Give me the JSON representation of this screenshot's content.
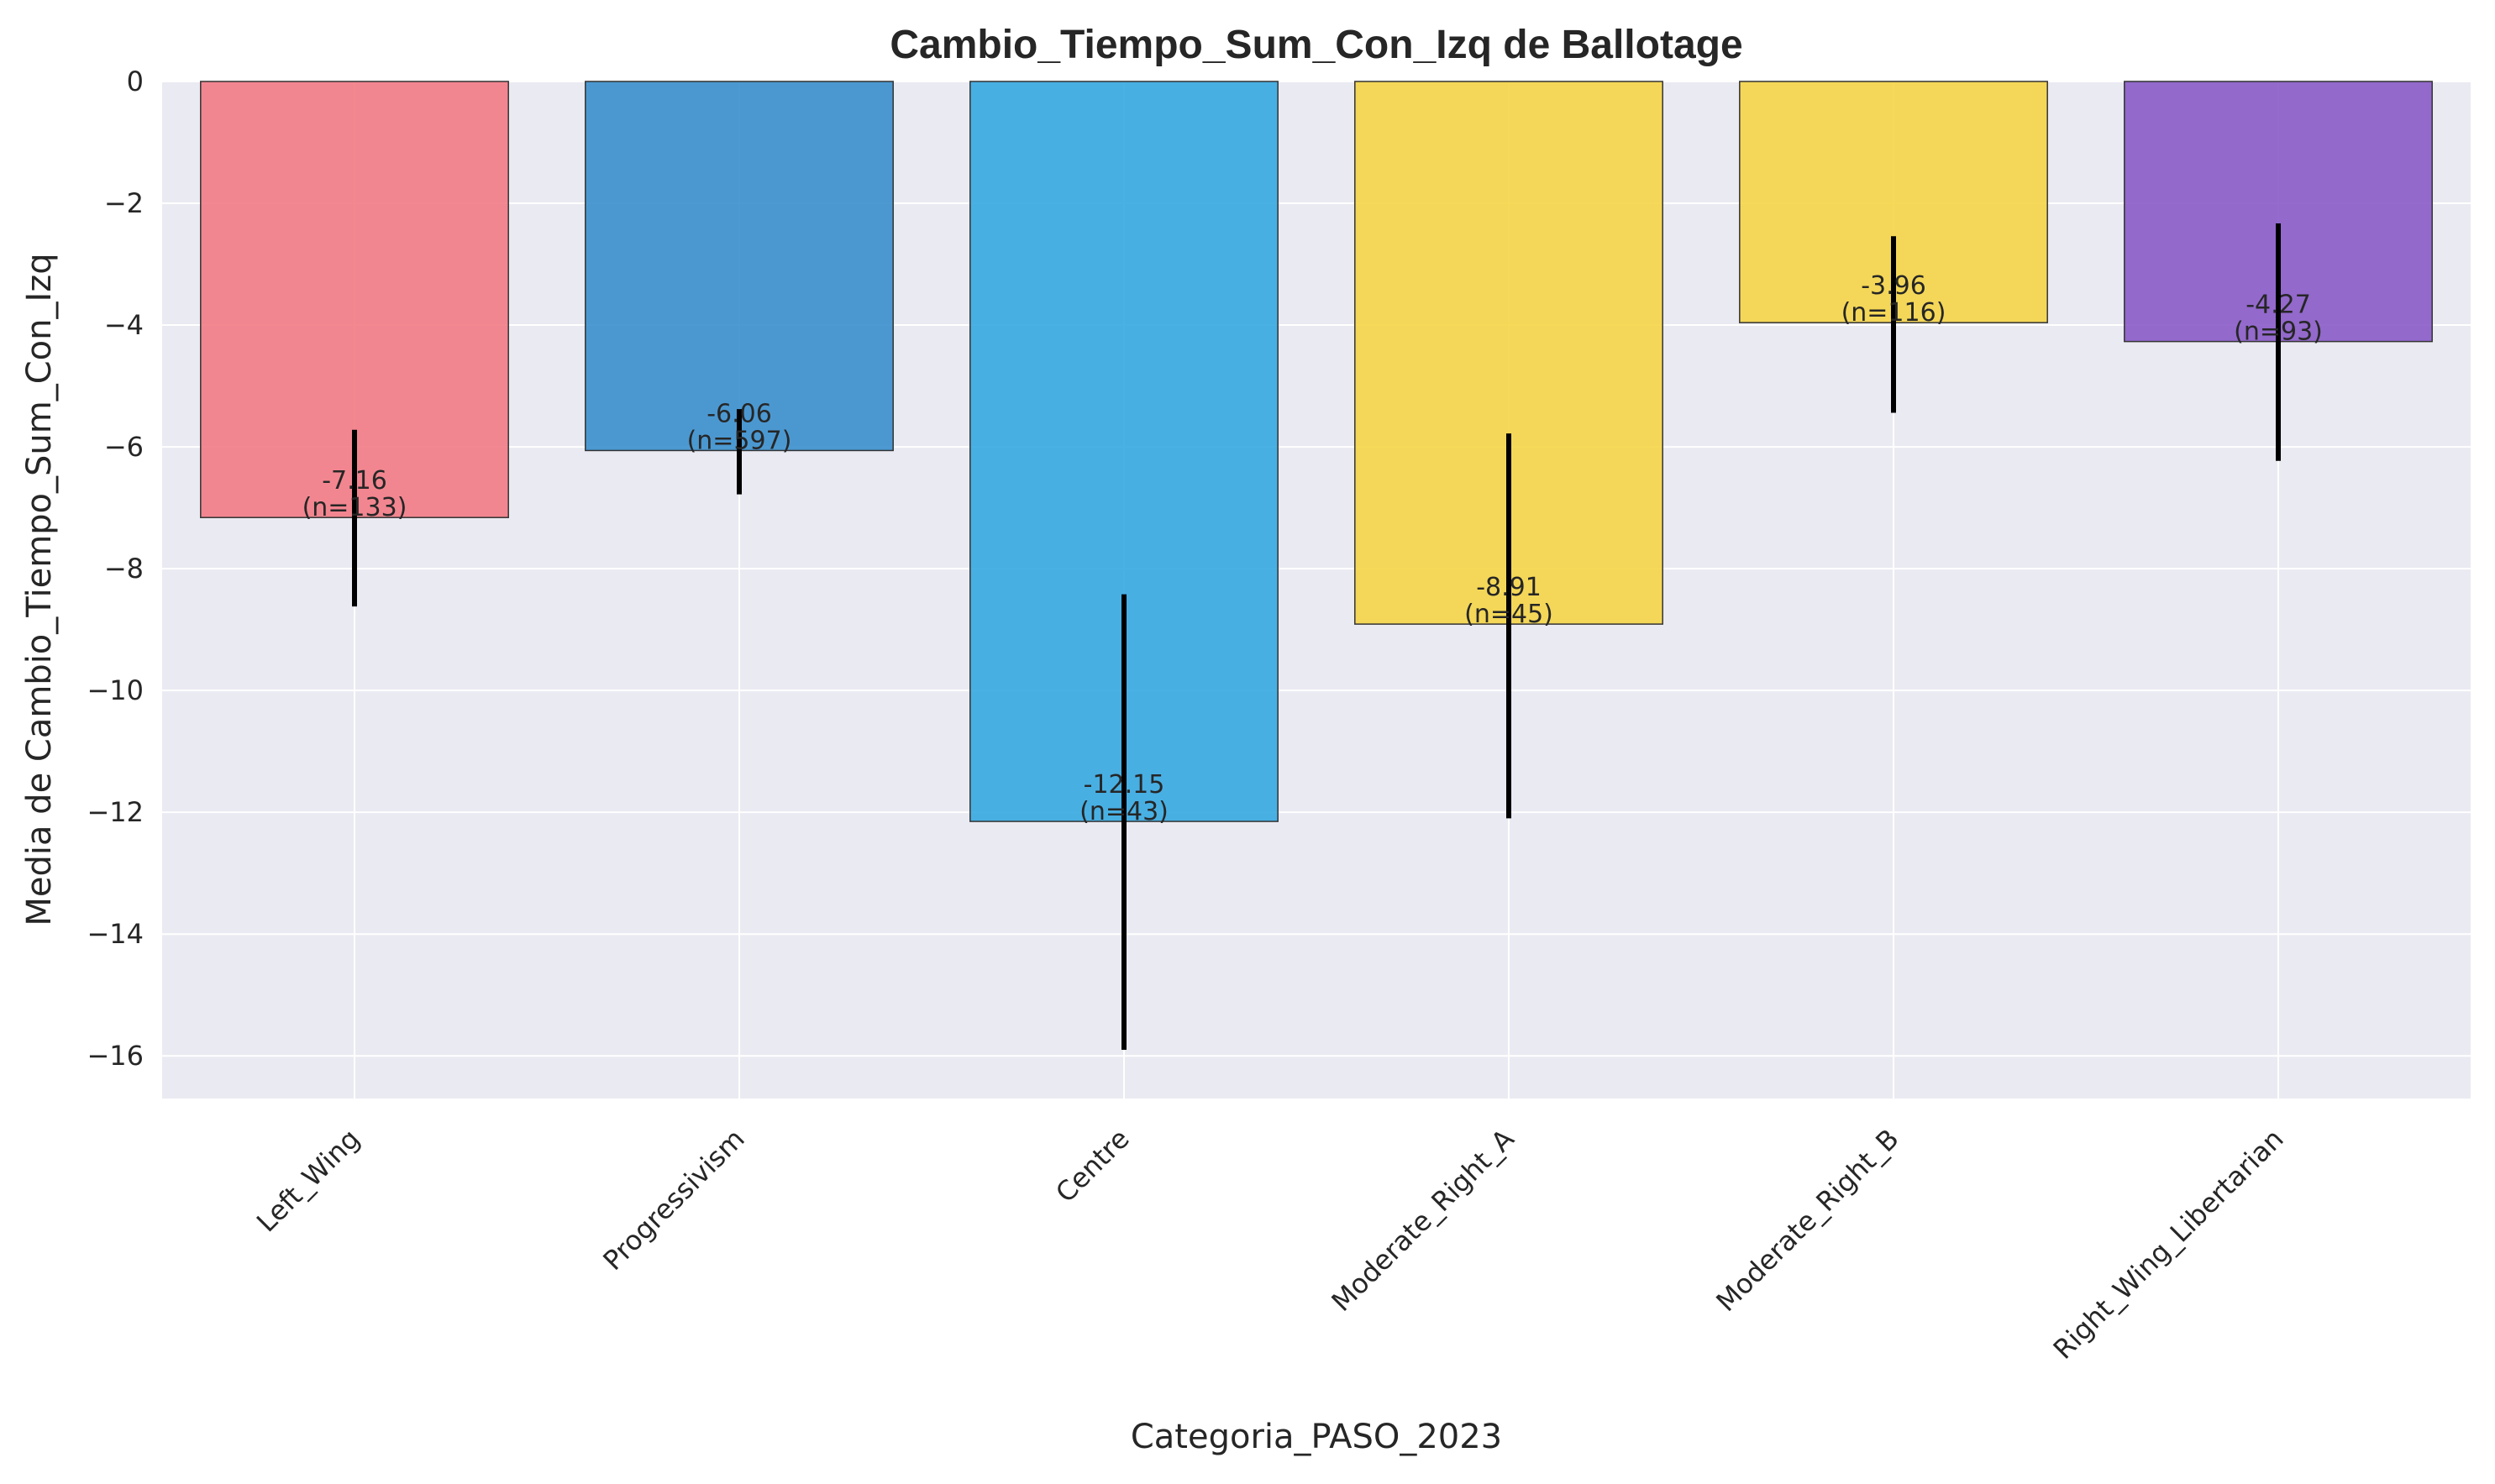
{
  "chart_data": {
    "type": "bar",
    "title": "Cambio_Tiempo_Sum_Con_Izq de Ballotage",
    "xlabel": "Categoria_PASO_2023",
    "ylabel": "Media de Cambio_Tiempo_Sum_Con_Izq",
    "ylim": [
      -16.7,
      0
    ],
    "yticks": [
      0,
      -2,
      -4,
      -6,
      -8,
      -10,
      -12,
      -14,
      -16
    ],
    "ytick_labels": [
      "0",
      "−2",
      "−4",
      "−6",
      "−8",
      "−10",
      "−12",
      "−14",
      "−16"
    ],
    "grid": true,
    "background_color": "#eaeaf2",
    "categories": [
      "Left_Wing",
      "Progressivism",
      "Centre",
      "Moderate_Right_A",
      "Moderate_Right_B",
      "Right_Wing_Libertarian"
    ],
    "values": [
      -7.16,
      -6.06,
      -12.15,
      -8.91,
      -3.96,
      -4.27
    ],
    "error_low": [
      -8.62,
      -6.78,
      -15.9,
      -12.1,
      -5.44,
      -6.23
    ],
    "error_high": [
      -5.72,
      -5.38,
      -8.42,
      -5.78,
      -2.54,
      -2.33
    ],
    "counts": [
      133,
      597,
      43,
      45,
      116,
      93
    ],
    "value_labels": [
      "-7.16",
      "-6.06",
      "-12.15",
      "-8.91",
      "-3.96",
      "-4.27"
    ],
    "count_labels": [
      "(n=133)",
      "(n=597)",
      "(n=43)",
      "(n=45)",
      "(n=116)",
      "(n=93)"
    ],
    "colors": [
      "#f37b85",
      "#3a8fcd",
      "#36a9e1",
      "#f5d547",
      "#f5d547",
      "#8a5bc8"
    ]
  }
}
